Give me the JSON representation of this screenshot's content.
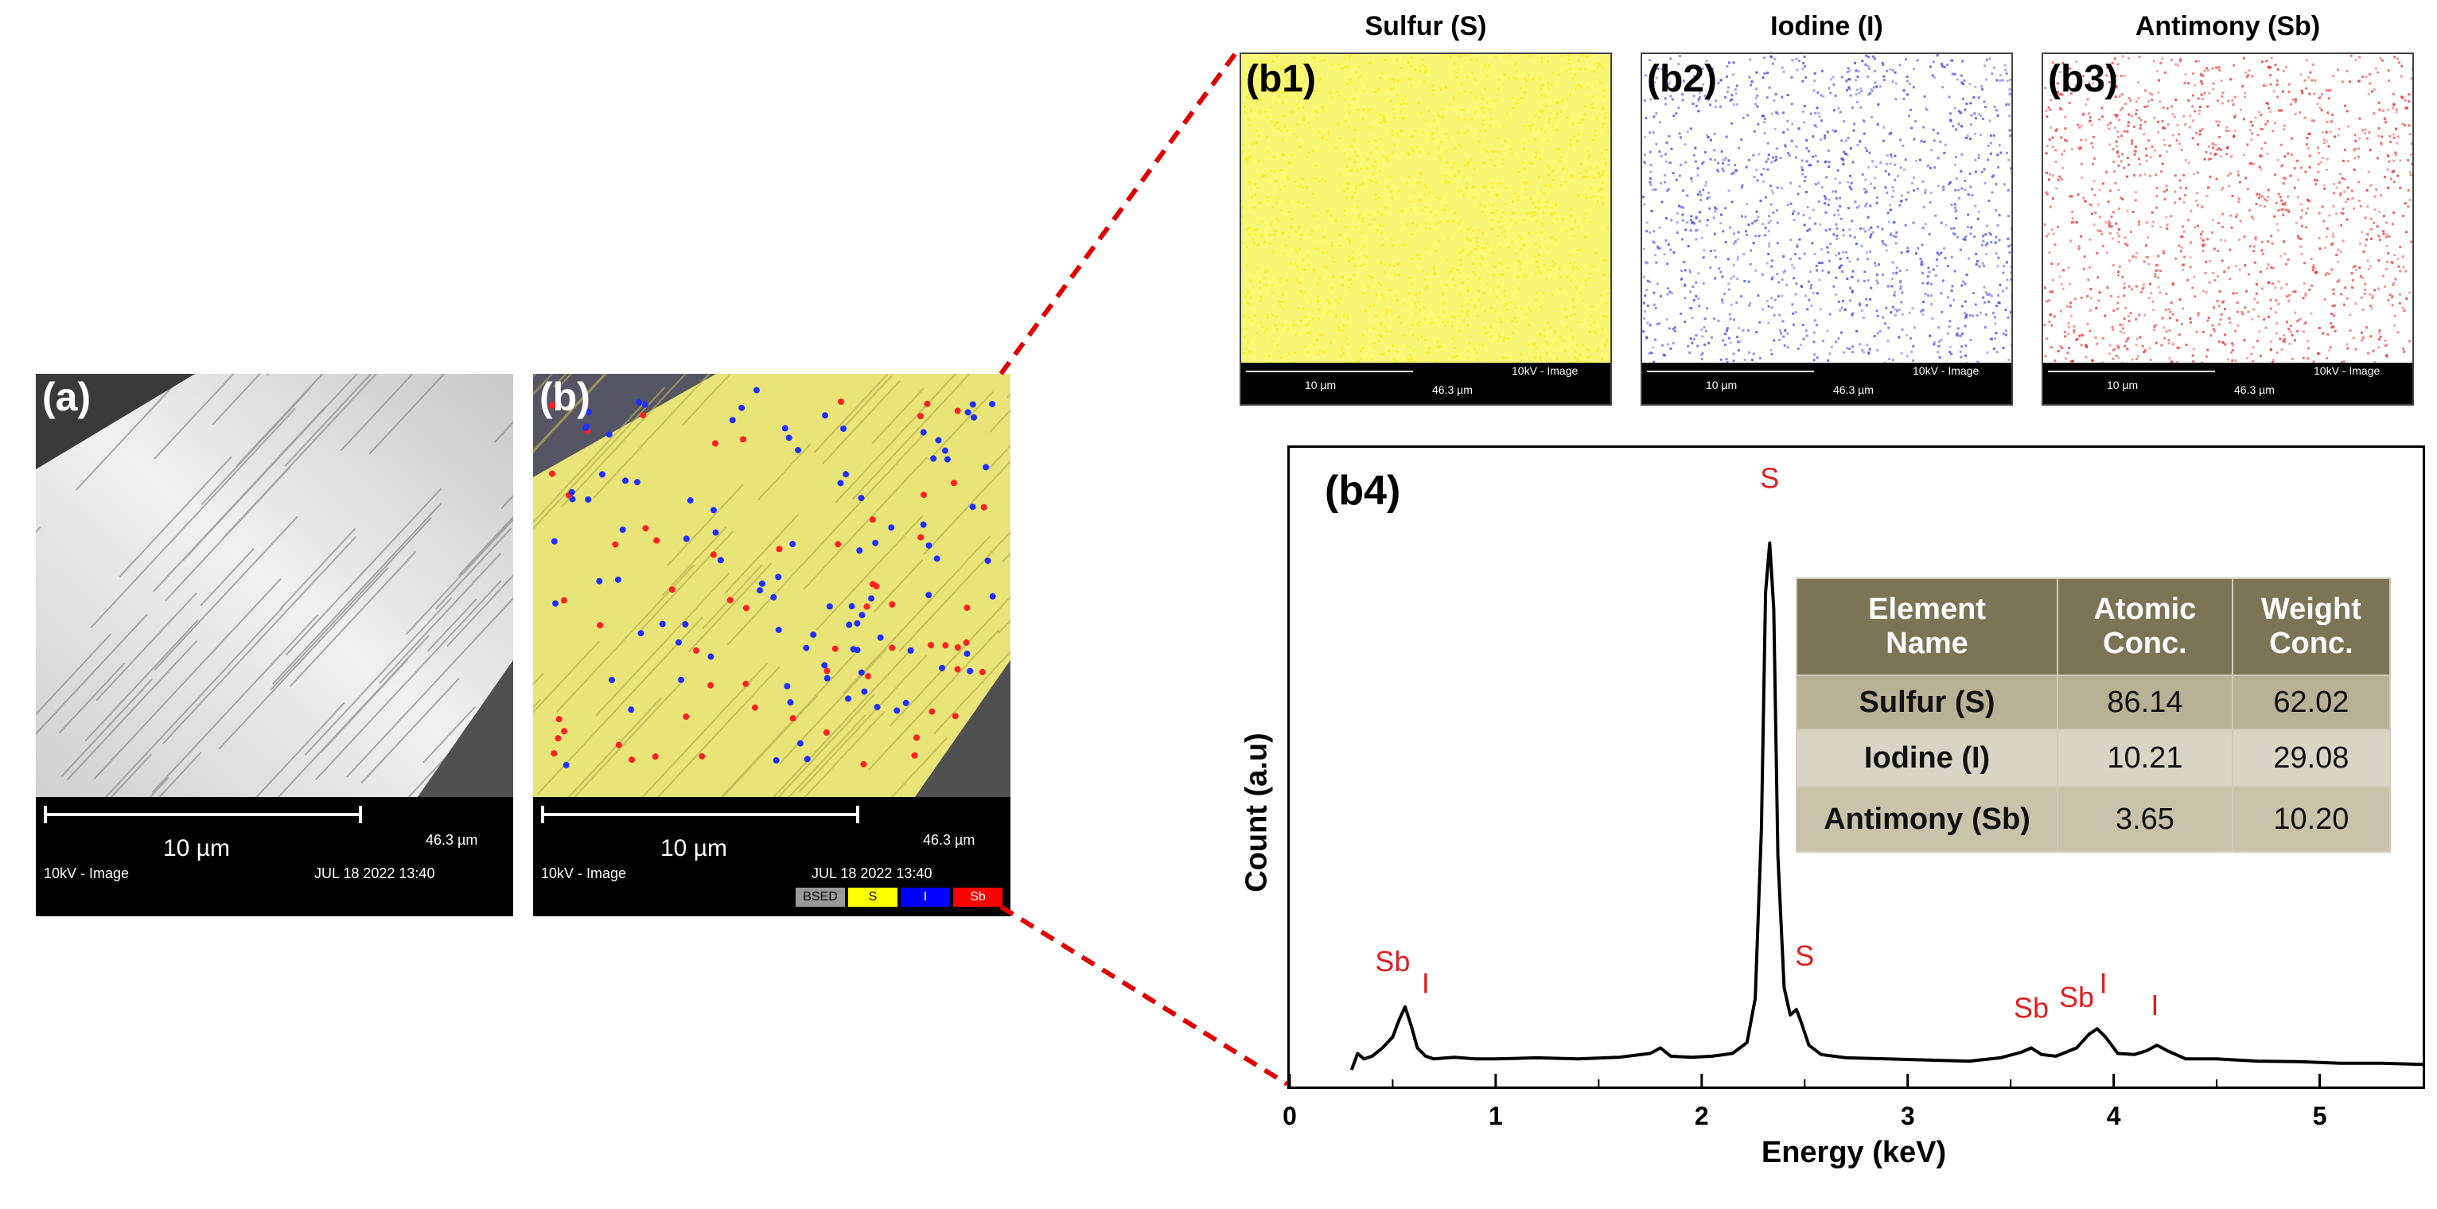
{
  "panels": {
    "a": {
      "label": "(a)",
      "scale": "10 µm",
      "width": "46.3 µm",
      "mode": "10kV - Image",
      "date": "JUL 18 2022 13:40"
    },
    "b": {
      "label": "(b)",
      "scale": "10 µm",
      "width": "46.3 µm",
      "mode": "10kV - Image",
      "date": "JUL 18 2022 13:40",
      "legend": [
        {
          "text": "BSED",
          "color": "#9a9a9a"
        },
        {
          "text": "S",
          "color": "#ffff00"
        },
        {
          "text": "I",
          "color": "#0000ff"
        },
        {
          "text": "Sb",
          "color": "#ff0000"
        }
      ]
    }
  },
  "maps": [
    {
      "id": "b1",
      "label": "(b1)",
      "title": "Sulfur (S)",
      "color": "#f2f000",
      "scale": "10 µm",
      "mode": "10kV - Image",
      "width": "46.3 µm"
    },
    {
      "id": "b2",
      "label": "(b2)",
      "title": "Iodine (I)",
      "color": "#3030d0",
      "scale": "10 µm",
      "mode": "10kV - Image",
      "width": "46.3 µm"
    },
    {
      "id": "b3",
      "label": "(b3)",
      "title": "Antimony (Sb)",
      "color": "#e02020",
      "scale": "10 µm",
      "mode": "10kV - Image",
      "width": "46.3 µm"
    }
  ],
  "chart_data": {
    "type": "line",
    "panel_label": "(b4)",
    "xlabel": "Energy (keV)",
    "ylabel": "Count (a.u)",
    "xlim": [
      0,
      5.5
    ],
    "ylim": [
      0,
      100
    ],
    "xticks": [
      0,
      1,
      2,
      3,
      4,
      5
    ],
    "x": [
      0.3,
      0.33,
      0.36,
      0.4,
      0.45,
      0.5,
      0.53,
      0.56,
      0.59,
      0.62,
      0.66,
      0.7,
      0.8,
      0.9,
      1.0,
      1.2,
      1.4,
      1.6,
      1.75,
      1.8,
      1.85,
      1.95,
      2.05,
      2.15,
      2.22,
      2.26,
      2.29,
      2.31,
      2.33,
      2.35,
      2.37,
      2.4,
      2.43,
      2.46,
      2.48,
      2.52,
      2.58,
      2.7,
      2.9,
      3.1,
      3.3,
      3.45,
      3.55,
      3.6,
      3.65,
      3.72,
      3.82,
      3.88,
      3.92,
      3.96,
      4.02,
      4.1,
      4.16,
      4.21,
      4.26,
      4.35,
      4.5,
      4.7,
      4.9,
      5.1,
      5.3,
      5.5
    ],
    "y": [
      1,
      4,
      3,
      3.5,
      5,
      7,
      10,
      12.5,
      9,
      5,
      3.5,
      3,
      3.3,
      3,
      3,
      3.2,
      3,
      3.3,
      4,
      5,
      3.5,
      3.3,
      3.5,
      4,
      6,
      14,
      45,
      88,
      97,
      85,
      40,
      16,
      11,
      12,
      10,
      5.5,
      3.8,
      3.2,
      3,
      2.8,
      2.6,
      3.2,
      4.2,
      5,
      3.8,
      3.5,
      5,
      7.5,
      8.5,
      7,
      4,
      3.8,
      4.5,
      5.5,
      4.5,
      3,
      3,
      2.6,
      2.5,
      2.2,
      2.2,
      2
    ],
    "peak_labels": [
      {
        "text": "Sb",
        "x": 0.5,
        "y": 19
      },
      {
        "text": "I",
        "x": 0.66,
        "y": 15
      },
      {
        "text": "S",
        "x": 2.33,
        "y": 107
      },
      {
        "text": "S",
        "x": 2.5,
        "y": 20
      },
      {
        "text": "Sb",
        "x": 3.6,
        "y": 10.5
      },
      {
        "text": "Sb",
        "x": 3.82,
        "y": 12.5
      },
      {
        "text": "I",
        "x": 3.95,
        "y": 15
      },
      {
        "text": "I",
        "x": 4.2,
        "y": 11
      }
    ],
    "table": {
      "headers": [
        [
          "Element",
          "Name"
        ],
        [
          "Atomic",
          "Conc."
        ],
        [
          "Weight",
          "Conc."
        ]
      ],
      "rows": [
        [
          "Sulfur (S)",
          "86.14",
          "62.02"
        ],
        [
          "Iodine (I)",
          "10.21",
          "29.08"
        ],
        [
          "Antimony (Sb)",
          "3.65",
          "10.20"
        ]
      ]
    }
  }
}
